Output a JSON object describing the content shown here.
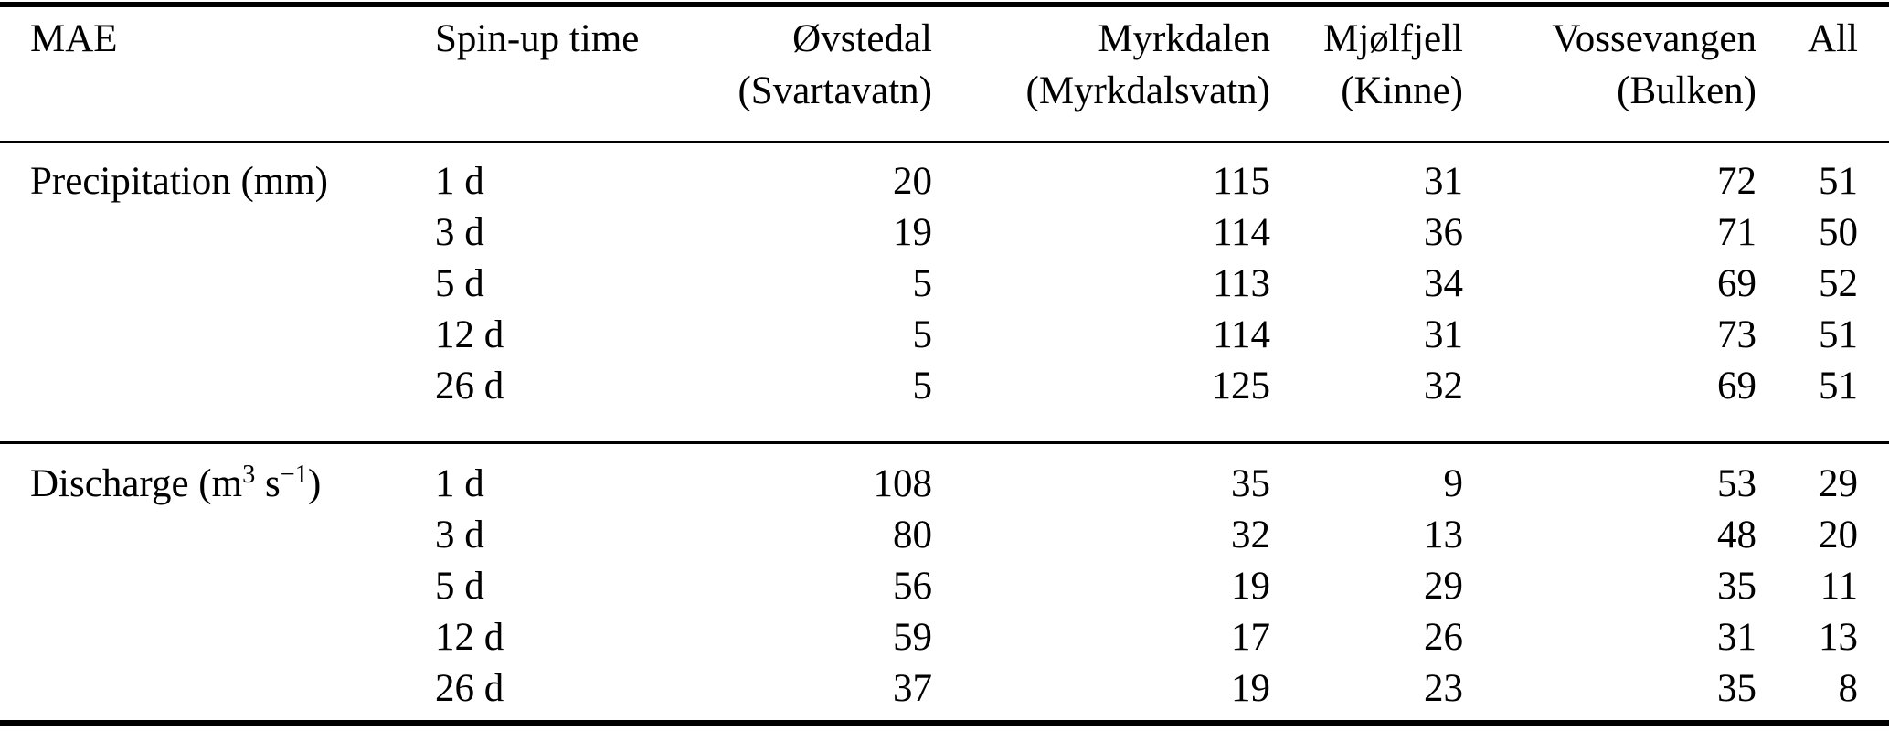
{
  "table": {
    "title_cell": "MAE",
    "header": {
      "col1": "MAE",
      "col2": "Spin-up time",
      "stations": [
        {
          "line1": "Øvstedal",
          "line2": "(Svartavatn)"
        },
        {
          "line1": "Myrkdalen",
          "line2": "(Myrkdalsvatn)"
        },
        {
          "line1": "Mjølfjell",
          "line2": "(Kinne)"
        },
        {
          "line1": "Vossevangen",
          "line2": "(Bulken)"
        },
        {
          "line1": "All",
          "line2": ""
        }
      ]
    },
    "sections": [
      {
        "label_parts": {
          "pre": "Precipitation (mm)",
          "sup1": "",
          "mid": "",
          "sup2": "",
          "post": ""
        },
        "rows": [
          {
            "spinup": "1 d",
            "values": [
              20,
              115,
              31,
              72,
              51
            ]
          },
          {
            "spinup": "3 d",
            "values": [
              19,
              114,
              36,
              71,
              50
            ]
          },
          {
            "spinup": "5 d",
            "values": [
              5,
              113,
              34,
              69,
              52
            ]
          },
          {
            "spinup": "12 d",
            "values": [
              5,
              114,
              31,
              73,
              51
            ]
          },
          {
            "spinup": "26 d",
            "values": [
              5,
              125,
              32,
              69,
              51
            ]
          }
        ]
      },
      {
        "label_parts": {
          "pre": "Discharge (m",
          "sup1": "3",
          "mid": " s",
          "sup2": "−1",
          "post": ")"
        },
        "rows": [
          {
            "spinup": "1 d",
            "values": [
              108,
              35,
              9,
              53,
              29
            ]
          },
          {
            "spinup": "3 d",
            "values": [
              80,
              32,
              13,
              48,
              20
            ]
          },
          {
            "spinup": "5 d",
            "values": [
              56,
              19,
              29,
              35,
              11
            ]
          },
          {
            "spinup": "12 d",
            "values": [
              59,
              17,
              26,
              31,
              13
            ]
          },
          {
            "spinup": "26 d",
            "values": [
              37,
              19,
              23,
              35,
              8
            ]
          }
        ]
      }
    ],
    "rule_color": "#000000",
    "text_color": "#000000",
    "background_color": "#ffffff"
  }
}
